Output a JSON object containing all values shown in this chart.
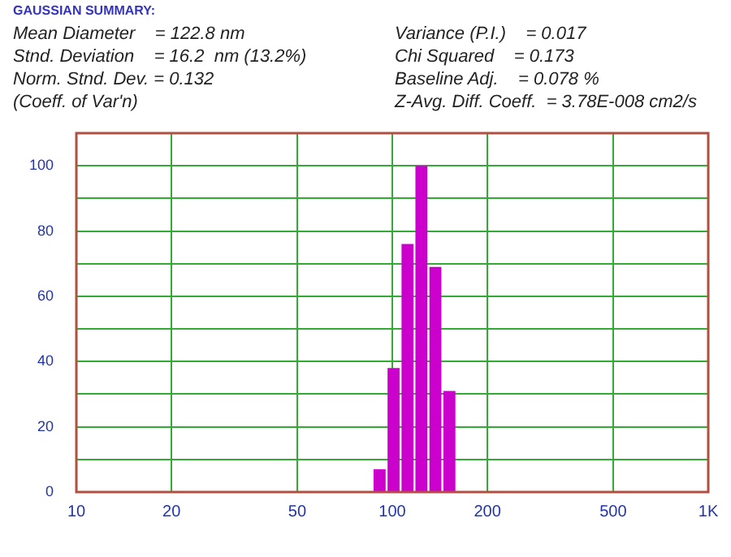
{
  "chart_data": {
    "type": "histogram",
    "title": "GAUSSIAN SUMMARY:",
    "annotations": [
      "Mean Diameter    = 122.8 nm",
      "Variance (P.I.)    = 0.017",
      "Stnd. Deviation    = 16.2  nm (13.2%)",
      "Chi Squared    = 0.173",
      "Norm. Stnd. Dev. = 0.132",
      "Baseline Adj.    = 0.078 %",
      "(Coeff. of Var'n)",
      "Z-Avg. Diff. Coeff.  = 3.78E-008 cm2/s"
    ],
    "bins": [
      86.6,
      95.9,
      106.2,
      117.5,
      130.1,
      144.0,
      159.5
    ],
    "values": [
      7,
      38,
      76,
      100,
      69,
      31
    ],
    "color": "#cc00cc",
    "log": "x",
    "xlim": [
      10,
      1000
    ],
    "xticks": [
      10,
      20,
      50,
      100,
      200,
      500,
      {
        "value": 1000,
        "label": "1K"
      }
    ],
    "ylim": [
      0,
      110
    ],
    "yticks": [
      0,
      {
        "value": 10,
        "label": null
      },
      20,
      {
        "value": 30,
        "label": null
      },
      40,
      {
        "value": 50,
        "label": null
      },
      60,
      {
        "value": 70,
        "label": null
      },
      80,
      {
        "value": 90,
        "label": null
      },
      100
    ],
    "grid": true,
    "legend": false
  }
}
